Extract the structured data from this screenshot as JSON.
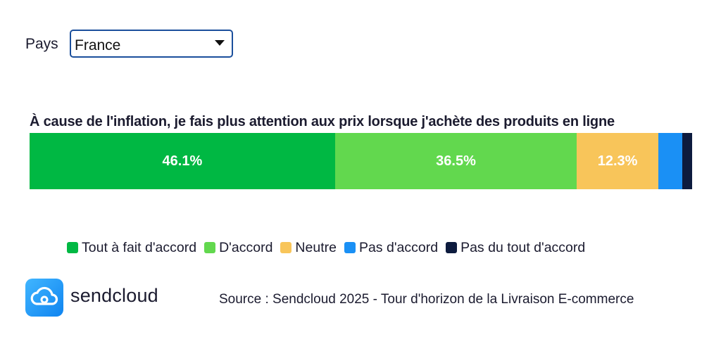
{
  "filter": {
    "label": "Pays",
    "selected": "France"
  },
  "chart_data": {
    "type": "bar",
    "orientation": "horizontal-stacked",
    "title": "À cause de l'inflation, je fais plus attention aux prix lorsque j'achète des produits en ligne",
    "series": [
      {
        "name": "Tout à fait d'accord",
        "value": 46.1,
        "label": "46.1%",
        "color": "#00b843"
      },
      {
        "name": "D'accord",
        "value": 36.5,
        "label": "36.5%",
        "color": "#62d84e"
      },
      {
        "name": "Neutre",
        "value": 12.3,
        "label": "12.3%",
        "color": "#f8c55a"
      },
      {
        "name": "Pas d'accord",
        "value": 3.6,
        "label": "",
        "color": "#1a90f5"
      },
      {
        "name": "Pas du tout d'accord",
        "value": 1.5,
        "label": "",
        "color": "#0d1b3e"
      }
    ],
    "xlim": [
      0,
      100
    ],
    "legend_position": "bottom"
  },
  "brand": {
    "name": "sendcloud",
    "icon": "cloud-icon"
  },
  "source": "Source : Sendcloud 2025 - Tour d'horizon de la Livraison E-commerce"
}
